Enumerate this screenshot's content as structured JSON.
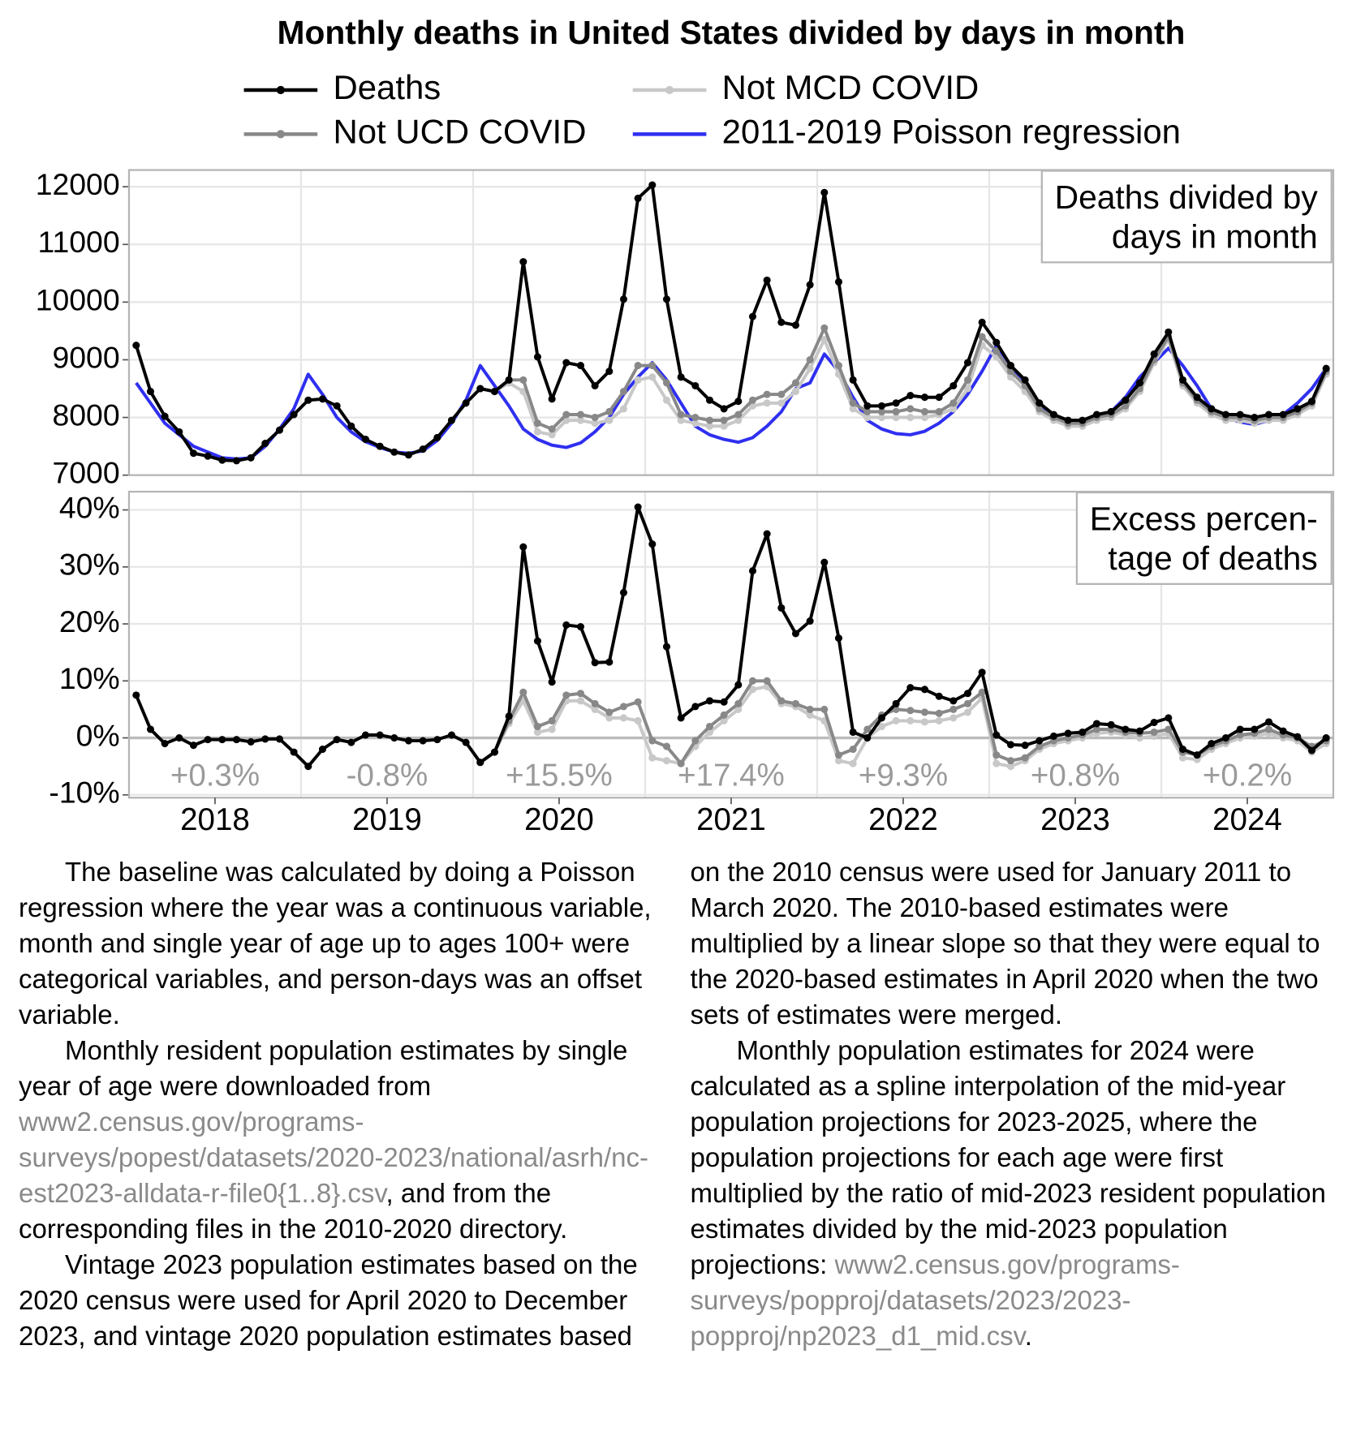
{
  "chart_data": [
    {
      "type": "line",
      "title": "Monthly deaths in United States divided by days in month",
      "panel_label": [
        "Deaths divided by",
        "days in month"
      ],
      "x": [
        "2018-01",
        "2018-02",
        "2018-03",
        "2018-04",
        "2018-05",
        "2018-06",
        "2018-07",
        "2018-08",
        "2018-09",
        "2018-10",
        "2018-11",
        "2018-12",
        "2019-01",
        "2019-02",
        "2019-03",
        "2019-04",
        "2019-05",
        "2019-06",
        "2019-07",
        "2019-08",
        "2019-09",
        "2019-10",
        "2019-11",
        "2019-12",
        "2020-01",
        "2020-02",
        "2020-03",
        "2020-04",
        "2020-05",
        "2020-06",
        "2020-07",
        "2020-08",
        "2020-09",
        "2020-10",
        "2020-11",
        "2020-12",
        "2021-01",
        "2021-02",
        "2021-03",
        "2021-04",
        "2021-05",
        "2021-06",
        "2021-07",
        "2021-08",
        "2021-09",
        "2021-10",
        "2021-11",
        "2021-12",
        "2022-01",
        "2022-02",
        "2022-03",
        "2022-04",
        "2022-05",
        "2022-06",
        "2022-07",
        "2022-08",
        "2022-09",
        "2022-10",
        "2022-11",
        "2022-12",
        "2023-01",
        "2023-02",
        "2023-03",
        "2023-04",
        "2023-05",
        "2023-06",
        "2023-07",
        "2023-08",
        "2023-09",
        "2023-10",
        "2023-11",
        "2023-12",
        "2024-01",
        "2024-02",
        "2024-03",
        "2024-04",
        "2024-05",
        "2024-06",
        "2024-07",
        "2024-08",
        "2024-09",
        "2024-10",
        "2024-11",
        "2024-12"
      ],
      "ylim": [
        7000,
        12290
      ],
      "yticks": [
        7000,
        8000,
        9000,
        10000,
        11000,
        12000
      ],
      "grid": true,
      "series": [
        {
          "name": "Deaths",
          "color": "#000000",
          "values": [
            9250,
            8450,
            8020,
            7750,
            7380,
            7330,
            7260,
            7250,
            7300,
            7550,
            7780,
            8050,
            8300,
            8320,
            8200,
            7850,
            7620,
            7500,
            7400,
            7350,
            7450,
            7650,
            7950,
            8250,
            8500,
            8450,
            8650,
            10700,
            9050,
            8320,
            8950,
            8900,
            8550,
            8800,
            10050,
            11800,
            12030,
            10050,
            8700,
            8550,
            8300,
            8150,
            8280,
            9750,
            10380,
            9650,
            9600,
            10300,
            11900,
            10350,
            8650,
            8200,
            8200,
            8250,
            8380,
            8350,
            8350,
            8550,
            8950,
            9650,
            9300,
            8900,
            8650,
            8250,
            8050,
            7950,
            7950,
            8050,
            8100,
            8300,
            8600,
            9100,
            9480,
            8650,
            8350,
            8150,
            8050,
            8050,
            8000,
            8050,
            8050,
            8150,
            8280,
            8850
          ]
        },
        {
          "name": "Not UCD COVID",
          "color": "#888888",
          "values": [
            null,
            null,
            null,
            null,
            null,
            null,
            null,
            null,
            null,
            null,
            null,
            null,
            null,
            null,
            null,
            null,
            null,
            null,
            null,
            null,
            null,
            null,
            null,
            null,
            8500,
            8450,
            8650,
            8650,
            7900,
            7800,
            8050,
            8050,
            8000,
            8100,
            8450,
            8900,
            8900,
            8600,
            8050,
            8000,
            7950,
            7950,
            8050,
            8300,
            8400,
            8400,
            8600,
            9000,
            9550,
            8900,
            8250,
            8100,
            8100,
            8100,
            8150,
            8100,
            8100,
            8250,
            8650,
            9400,
            9150,
            8800,
            8550,
            8150,
            8000,
            7900,
            7900,
            8000,
            8050,
            8200,
            8500,
            9000,
            9400,
            8600,
            8300,
            8100,
            8000,
            8000,
            7950,
            8000,
            8000,
            8100,
            8250,
            8800
          ]
        },
        {
          "name": "Not MCD COVID",
          "color": "#c8c8c8",
          "values": [
            null,
            null,
            null,
            null,
            null,
            null,
            null,
            null,
            null,
            null,
            null,
            null,
            null,
            null,
            null,
            null,
            null,
            null,
            null,
            null,
            null,
            null,
            null,
            null,
            8500,
            8450,
            8600,
            8450,
            7750,
            7700,
            7950,
            7950,
            7900,
            7950,
            8150,
            8650,
            8700,
            8300,
            7950,
            7900,
            7850,
            7850,
            7950,
            8200,
            8250,
            8250,
            8450,
            8850,
            9350,
            8750,
            8150,
            8000,
            8000,
            8000,
            8000,
            8000,
            8050,
            8150,
            8500,
            9250,
            9050,
            8700,
            8450,
            8100,
            7950,
            7850,
            7850,
            7950,
            8000,
            8150,
            8450,
            8950,
            9350,
            8550,
            8250,
            8050,
            7950,
            7950,
            7900,
            7950,
            7950,
            8050,
            8200,
            8750
          ]
        },
        {
          "name": "2011-2019 Poisson regression",
          "color": "#2f2ff0",
          "markers": false,
          "values": [
            8600,
            8250,
            7900,
            7700,
            7500,
            7400,
            7300,
            7280,
            7300,
            7500,
            7800,
            8150,
            8750,
            8400,
            8000,
            7750,
            7580,
            7480,
            7400,
            7380,
            7420,
            7600,
            7900,
            8300,
            8900,
            8550,
            8200,
            7800,
            7620,
            7520,
            7480,
            7560,
            7750,
            8000,
            8400,
            8700,
            8950,
            8650,
            8250,
            7850,
            7700,
            7620,
            7570,
            7650,
            7850,
            8100,
            8500,
            8600,
            9100,
            8800,
            8350,
            7950,
            7800,
            7720,
            7700,
            7760,
            7900,
            8100,
            8400,
            8800,
            9250,
            8900,
            8550,
            8200,
            8000,
            7920,
            7880,
            7950,
            8100,
            8350,
            8700,
            8950,
            9200,
            8900,
            8550,
            8150,
            8000,
            7920,
            7880,
            7950,
            8050,
            8250,
            8500,
            8850
          ]
        }
      ]
    },
    {
      "type": "line",
      "panel_label": [
        "Excess percen-",
        "tage of deaths"
      ],
      "x": [
        "2018-01",
        "2018-02",
        "2018-03",
        "2018-04",
        "2018-05",
        "2018-06",
        "2018-07",
        "2018-08",
        "2018-09",
        "2018-10",
        "2018-11",
        "2018-12",
        "2019-01",
        "2019-02",
        "2019-03",
        "2019-04",
        "2019-05",
        "2019-06",
        "2019-07",
        "2019-08",
        "2019-09",
        "2019-10",
        "2019-11",
        "2019-12",
        "2020-01",
        "2020-02",
        "2020-03",
        "2020-04",
        "2020-05",
        "2020-06",
        "2020-07",
        "2020-08",
        "2020-09",
        "2020-10",
        "2020-11",
        "2020-12",
        "2021-01",
        "2021-02",
        "2021-03",
        "2021-04",
        "2021-05",
        "2021-06",
        "2021-07",
        "2021-08",
        "2021-09",
        "2021-10",
        "2021-11",
        "2021-12",
        "2022-01",
        "2022-02",
        "2022-03",
        "2022-04",
        "2022-05",
        "2022-06",
        "2022-07",
        "2022-08",
        "2022-09",
        "2022-10",
        "2022-11",
        "2022-12",
        "2023-01",
        "2023-02",
        "2023-03",
        "2023-04",
        "2023-05",
        "2023-06",
        "2023-07",
        "2023-08",
        "2023-09",
        "2023-10",
        "2023-11",
        "2023-12",
        "2024-01",
        "2024-02",
        "2024-03",
        "2024-04",
        "2024-05",
        "2024-06",
        "2024-07",
        "2024-08",
        "2024-09",
        "2024-10",
        "2024-11",
        "2024-12"
      ],
      "ylim": [
        -10.5,
        43.2
      ],
      "yticks": [
        {
          "value": -10,
          "label": "-10%"
        },
        {
          "value": 0,
          "label": "0%"
        },
        {
          "value": 10,
          "label": "10%"
        },
        {
          "value": 20,
          "label": "20%"
        },
        {
          "value": 30,
          "label": "30%"
        },
        {
          "value": 40,
          "label": "40%"
        }
      ],
      "grid": true,
      "xticks": [
        2018,
        2019,
        2020,
        2021,
        2022,
        2023,
        2024
      ],
      "annotations": [
        "+0.3%",
        "-0.8%",
        "+15.5%",
        "+17.4%",
        "+9.3%",
        "+0.8%",
        "+0.2%"
      ],
      "series": [
        {
          "name": "Deaths",
          "color": "#000000",
          "values": [
            7.5,
            1.5,
            -1,
            0,
            -1.3,
            -0.3,
            -0.3,
            -0.3,
            -0.7,
            -0.2,
            -0.2,
            -2.5,
            -5,
            -2,
            -0.3,
            -0.8,
            0.5,
            0.5,
            0,
            -0.5,
            -0.5,
            -0.3,
            0.5,
            -0.8,
            -4.3,
            -2.5,
            3.8,
            33.5,
            17,
            9.8,
            19.8,
            19.5,
            13.2,
            13.3,
            25.5,
            40.5,
            34,
            16,
            3.5,
            5.5,
            6.5,
            6.3,
            9.3,
            29.3,
            35.8,
            22.8,
            18.3,
            20.5,
            30.8,
            17.5,
            1,
            0,
            3.5,
            6,
            8.8,
            8.5,
            7.3,
            6.5,
            7.8,
            11.5,
            0.5,
            -1.2,
            -1.3,
            -0.5,
            0.3,
            0.8,
            1,
            2.5,
            2.3,
            1.5,
            1.2,
            2.7,
            3.5,
            -2,
            -3,
            -1,
            0,
            1.5,
            1.5,
            2.8,
            1.2,
            0.2,
            -2.2,
            0
          ]
        },
        {
          "name": "Not UCD COVID",
          "color": "#888888",
          "values": [
            null,
            null,
            null,
            null,
            null,
            null,
            null,
            null,
            null,
            null,
            null,
            null,
            null,
            null,
            null,
            null,
            null,
            null,
            null,
            null,
            null,
            null,
            null,
            null,
            -4.3,
            -2.5,
            3,
            8,
            2,
            3,
            7.5,
            7.8,
            6,
            4.5,
            5.5,
            6.3,
            -0.5,
            -1.5,
            -4.5,
            -0.5,
            2,
            4,
            6,
            10,
            10,
            6.5,
            6,
            5,
            5,
            -3,
            -2,
            1.5,
            4,
            5,
            4.8,
            4.5,
            4.3,
            5,
            6,
            8,
            -3,
            -4,
            -3.5,
            -1.5,
            -0.5,
            0,
            0.5,
            1.5,
            1.5,
            1,
            0.8,
            1,
            1.5,
            -2.5,
            -3,
            -1.5,
            -0.5,
            0.5,
            0.8,
            1.5,
            0.5,
            0,
            -1.5,
            -0.5
          ]
        },
        {
          "name": "Not MCD COVID",
          "color": "#c8c8c8",
          "values": [
            null,
            null,
            null,
            null,
            null,
            null,
            null,
            null,
            null,
            null,
            null,
            null,
            null,
            null,
            null,
            null,
            null,
            null,
            null,
            null,
            null,
            null,
            null,
            null,
            -4.3,
            -2.5,
            2.5,
            6.5,
            1,
            1.5,
            6.5,
            6.5,
            5,
            3.5,
            3.5,
            3,
            -3.5,
            -4,
            -4.5,
            -1.5,
            1,
            3,
            5,
            8.5,
            9,
            6,
            5.5,
            4,
            3,
            -4,
            -4.5,
            0,
            2,
            3,
            3,
            2.8,
            3,
            3.5,
            4.5,
            7,
            -4.5,
            -5,
            -4,
            -2,
            -1,
            -0.5,
            0,
            0.8,
            1,
            0.5,
            0,
            0.3,
            0.8,
            -3.5,
            -3.8,
            -2,
            -1,
            0,
            0.3,
            0.8,
            0,
            -0.5,
            -2.5,
            -1
          ]
        }
      ]
    }
  ],
  "notes": {
    "paragraphs": [
      {
        "text": "The baseline was calculated by doing a Poisson regression where the year was a continuous variable, month and single year of age up to ages 100+ were categorical variables, and person-days was an offset variable."
      },
      {
        "text": "Monthly resident population estimates by single year of age were downloaded from ",
        "link": "www2.census.gov/programs-surveys/popest/datasets/2020-2023/national/asrh/nc-est2023-alldata-r-file0{1..8}.csv",
        "after": ", and from the corresponding files in the 2010-2020 directory."
      },
      {
        "text": "Vintage 2023 population estimates based on the 2020 census were used for April 2020 to December 2023, and vintage 2020 population estimates based on the 2010 census were used for January 2011 to March 2020. The 2010-based estimates were multiplied by a linear slope so that they were equal to the 2020-based estimates in April 2020 when the two sets of estimates were merged."
      },
      {
        "text": "Monthly population estimates for 2024 were calculated as a spline interpolation of the mid-year population projections for 2023-2025, where the population projections for each age were first multiplied by the ratio of mid-2023 resident population estimates divided by the mid-2023 population projections: ",
        "link": "www2.census.gov/programs-surveys/popproj/datasets/2023/2023-popproj/np2023_d1_mid.csv",
        "after": "."
      }
    ]
  }
}
